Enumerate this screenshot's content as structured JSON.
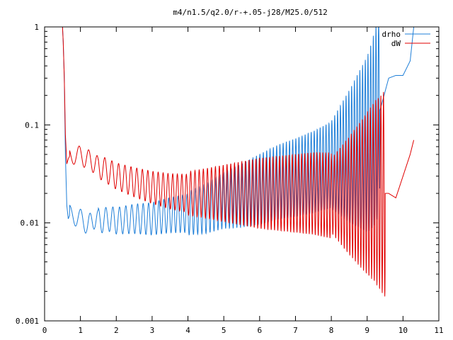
{
  "chart_data": {
    "type": "line",
    "title": "m4/n1.5/q2.0/r-+.05-j28/M25.0/512",
    "xlabel": "",
    "ylabel": "",
    "xlim": [
      0,
      11
    ],
    "ylim": [
      0.001,
      1
    ],
    "yscale": "log",
    "grid": false,
    "legend_position": "top-right",
    "x_ticks": [
      "0",
      "1",
      "2",
      "3",
      "4",
      "5",
      "6",
      "7",
      "8",
      "9",
      "10",
      "11"
    ],
    "y_ticks": [
      "0.001",
      "0.01",
      "0.1",
      "1"
    ],
    "series": [
      {
        "name": "drho",
        "color": "#1f7fd8",
        "x": [
          0.5,
          0.52,
          0.55,
          0.58,
          0.62,
          0.66,
          0.7,
          0.8,
          1.0,
          1.2,
          1.4,
          1.6,
          1.8,
          2.0,
          2.5,
          3.0,
          3.5,
          4.0,
          4.5,
          5.0,
          5.5,
          6.0,
          6.5,
          7.0,
          7.5,
          8.0,
          8.5,
          9.0,
          9.2,
          9.4,
          9.6,
          9.8,
          10.0,
          10.2,
          10.3
        ],
        "values": [
          1.0,
          0.7,
          0.3,
          0.05,
          0.015,
          0.011,
          0.012,
          0.012,
          0.011,
          0.0095,
          0.011,
          0.0105,
          0.011,
          0.0105,
          0.011,
          0.011,
          0.012,
          0.0125,
          0.014,
          0.017,
          0.019,
          0.022,
          0.026,
          0.029,
          0.033,
          0.039,
          0.048,
          0.063,
          0.09,
          0.16,
          0.3,
          0.32,
          0.32,
          0.45,
          1.0
        ],
        "oscillation_start": 0.7,
        "oscillation_end": 9.35
      },
      {
        "name": "dW",
        "color": "#e00000",
        "x": [
          0.5,
          0.52,
          0.55,
          0.58,
          0.62,
          0.66,
          0.7,
          0.8,
          1.0,
          1.2,
          1.4,
          1.6,
          1.8,
          2.0,
          2.5,
          3.0,
          3.5,
          4.0,
          4.5,
          5.0,
          5.5,
          6.0,
          6.5,
          7.0,
          7.5,
          8.0,
          8.5,
          9.0,
          9.2,
          9.4,
          9.6,
          9.8,
          10.0,
          10.2,
          10.3
        ],
        "values": [
          1.0,
          0.7,
          0.3,
          0.08,
          0.04,
          0.045,
          0.048,
          0.05,
          0.048,
          0.045,
          0.04,
          0.036,
          0.033,
          0.03,
          0.026,
          0.023,
          0.021,
          0.02,
          0.02,
          0.02,
          0.02,
          0.02,
          0.02,
          0.02,
          0.02,
          0.019,
          0.019,
          0.02,
          0.021,
          0.02,
          0.02,
          0.018,
          0.03,
          0.05,
          0.07
        ],
        "oscillation_start": 0.7,
        "oscillation_end": 9.5
      }
    ]
  }
}
